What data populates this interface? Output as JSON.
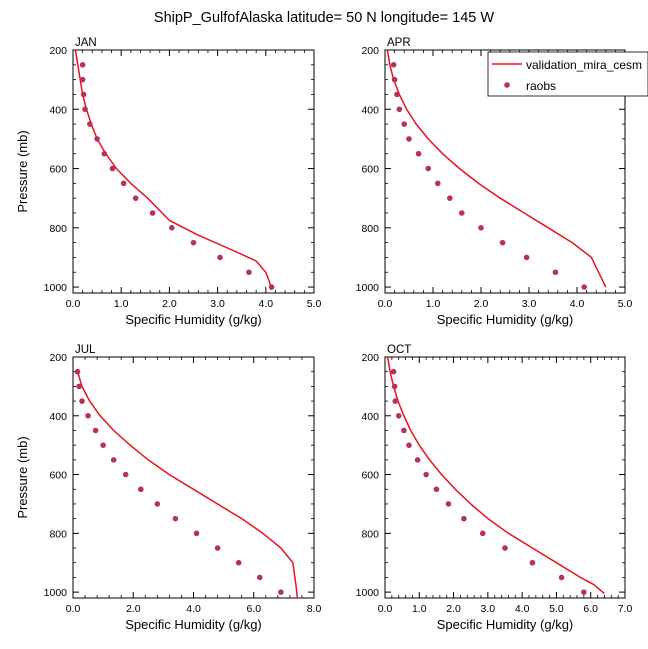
{
  "title": "ShipP_GulfofAlaska  latitude= 50 N longitude= 145 W",
  "legend": {
    "model_label": "validation_mira_cesm",
    "obs_label": "raobs"
  },
  "colors": {
    "model": "#e8121e",
    "obs": "#b8305c",
    "axis": "#000000"
  },
  "chart_data": [
    {
      "type": "line",
      "panel": "JAN",
      "xlabel": "Specific Humidity (g/kg)",
      "ylabel": "Pressure (mb)",
      "xlim": [
        0,
        5
      ],
      "ylim": [
        200,
        1020
      ],
      "y_inverted": true,
      "xticks": [
        0,
        1,
        2,
        3,
        4,
        5
      ],
      "xtick_labels": [
        "0.0",
        "1.0",
        "2.0",
        "3.0",
        "4.0",
        "5.0"
      ],
      "yticks": [
        200,
        400,
        600,
        800,
        1000
      ],
      "ytick_labels": [
        "200",
        "400",
        "600",
        "800",
        "1000"
      ],
      "series": [
        {
          "name": "validation_mira_cesm",
          "kind": "line",
          "x": [
            0.05,
            0.1,
            0.15,
            0.2,
            0.28,
            0.38,
            0.5,
            0.68,
            0.9,
            1.2,
            1.55,
            2.0,
            2.6,
            3.3,
            3.8,
            4.0,
            4.08,
            4.12
          ],
          "y": [
            200,
            250,
            300,
            350,
            400,
            450,
            500,
            550,
            600,
            650,
            700,
            775,
            825,
            875,
            912,
            950,
            985,
            1010
          ]
        },
        {
          "name": "raobs",
          "kind": "marker",
          "x": [
            0.2,
            0.2,
            0.22,
            0.25,
            0.35,
            0.5,
            0.65,
            0.82,
            1.05,
            1.3,
            1.65,
            2.05,
            2.5,
            3.05,
            3.65,
            4.12
          ],
          "y": [
            250,
            300,
            350,
            400,
            450,
            500,
            550,
            600,
            650,
            700,
            750,
            800,
            850,
            900,
            950,
            1000
          ]
        }
      ]
    },
    {
      "type": "line",
      "panel": "APR",
      "xlabel": "Specific Humidity (g/kg)",
      "ylabel": "",
      "xlim": [
        0,
        5
      ],
      "ylim": [
        200,
        1020
      ],
      "y_inverted": true,
      "xticks": [
        0,
        1,
        2,
        3,
        4,
        5
      ],
      "xtick_labels": [
        "0.0",
        "1.0",
        "2.0",
        "3.0",
        "4.0",
        "5.0"
      ],
      "yticks": [
        200,
        400,
        600,
        800,
        1000
      ],
      "ytick_labels": [
        "200",
        "400",
        "600",
        "800",
        "1000"
      ],
      "series": [
        {
          "name": "validation_mira_cesm",
          "kind": "line",
          "x": [
            0.05,
            0.1,
            0.18,
            0.3,
            0.45,
            0.65,
            0.9,
            1.2,
            1.55,
            1.95,
            2.4,
            2.9,
            3.4,
            3.9,
            4.3,
            4.45,
            4.6
          ],
          "y": [
            200,
            250,
            300,
            350,
            400,
            450,
            500,
            550,
            600,
            650,
            700,
            750,
            800,
            850,
            900,
            950,
            1000
          ]
        },
        {
          "name": "raobs",
          "kind": "marker",
          "x": [
            0.18,
            0.2,
            0.25,
            0.3,
            0.4,
            0.5,
            0.7,
            0.9,
            1.1,
            1.35,
            1.6,
            2.0,
            2.45,
            2.95,
            3.55,
            4.15
          ],
          "y": [
            250,
            300,
            350,
            400,
            450,
            500,
            550,
            600,
            650,
            700,
            750,
            800,
            850,
            900,
            950,
            1000
          ]
        }
      ]
    },
    {
      "type": "line",
      "panel": "JUL",
      "xlabel": "Specific Humidity (g/kg)",
      "ylabel": "Pressure (mb)",
      "xlim": [
        0,
        8
      ],
      "ylim": [
        200,
        1020
      ],
      "y_inverted": true,
      "xticks": [
        0,
        2,
        4,
        6,
        8
      ],
      "xtick_labels": [
        "0.0",
        "2.0",
        "4.0",
        "6.0",
        "8.0"
      ],
      "yticks": [
        200,
        400,
        600,
        800,
        1000
      ],
      "ytick_labels": [
        "200",
        "400",
        "600",
        "800",
        "1000"
      ],
      "series": [
        {
          "name": "validation_mira_cesm",
          "kind": "line",
          "x": [
            0.15,
            0.3,
            0.55,
            0.9,
            1.35,
            1.9,
            2.5,
            3.2,
            4.0,
            4.8,
            5.6,
            6.3,
            6.9,
            7.3,
            7.4,
            7.45
          ],
          "y": [
            250,
            300,
            350,
            400,
            450,
            500,
            550,
            600,
            650,
            700,
            750,
            800,
            850,
            900,
            975,
            1020
          ]
        },
        {
          "name": "raobs",
          "kind": "marker",
          "x": [
            0.15,
            0.2,
            0.3,
            0.5,
            0.75,
            1.0,
            1.35,
            1.75,
            2.25,
            2.8,
            3.4,
            4.1,
            4.8,
            5.5,
            6.2,
            6.9
          ],
          "y": [
            250,
            300,
            350,
            400,
            450,
            500,
            550,
            600,
            650,
            700,
            750,
            800,
            850,
            900,
            950,
            1000
          ]
        }
      ]
    },
    {
      "type": "line",
      "panel": "OCT",
      "xlabel": "Specific Humidity (g/kg)",
      "ylabel": "",
      "xlim": [
        0,
        7
      ],
      "ylim": [
        200,
        1020
      ],
      "y_inverted": true,
      "xticks": [
        0,
        1,
        2,
        3,
        4,
        5,
        6,
        7
      ],
      "xtick_labels": [
        "0.0",
        "1.0",
        "2.0",
        "3.0",
        "4.0",
        "5.0",
        "6.0",
        "7.0"
      ],
      "yticks": [
        200,
        400,
        600,
        800,
        1000
      ],
      "ytick_labels": [
        "200",
        "400",
        "600",
        "800",
        "1000"
      ],
      "series": [
        {
          "name": "validation_mira_cesm",
          "kind": "line",
          "x": [
            0.08,
            0.15,
            0.25,
            0.38,
            0.55,
            0.75,
            1.0,
            1.3,
            1.65,
            2.05,
            2.5,
            3.0,
            3.6,
            4.3,
            5.0,
            5.7,
            6.1,
            6.4
          ],
          "y": [
            200,
            250,
            300,
            350,
            400,
            450,
            500,
            550,
            600,
            650,
            700,
            750,
            800,
            850,
            900,
            950,
            975,
            1005
          ]
        },
        {
          "name": "raobs",
          "kind": "marker",
          "x": [
            0.25,
            0.28,
            0.3,
            0.4,
            0.55,
            0.7,
            0.95,
            1.2,
            1.5,
            1.85,
            2.3,
            2.85,
            3.5,
            4.3,
            5.15,
            5.8
          ],
          "y": [
            250,
            300,
            350,
            400,
            450,
            500,
            550,
            600,
            650,
            700,
            750,
            800,
            850,
            900,
            950,
            1000
          ]
        }
      ]
    }
  ]
}
